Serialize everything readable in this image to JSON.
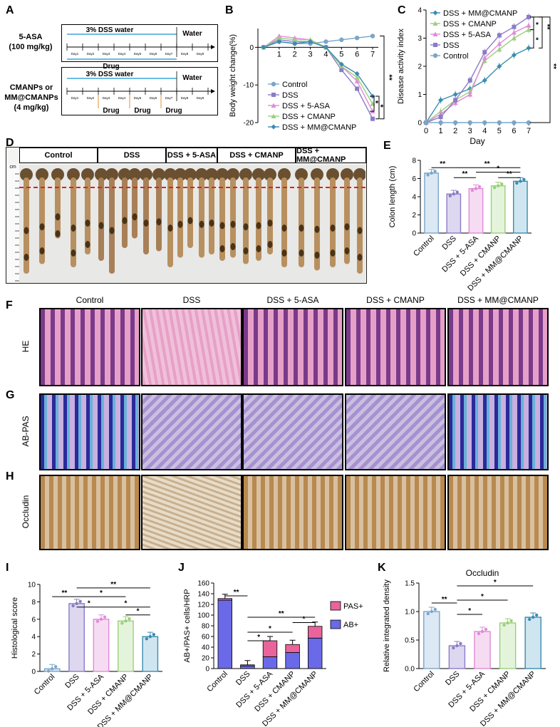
{
  "panels": {
    "A": "A",
    "B": "B",
    "C": "C",
    "D": "D",
    "E": "E",
    "F": "F",
    "G": "G",
    "H": "H",
    "I": "I",
    "J": "J",
    "K": "K"
  },
  "schedule": {
    "row1_drug": "5-ASA",
    "row1_dose": "(100 mg/kg)",
    "row2_drug_line1": "CMANPs or",
    "row2_drug_line2": "MM@CMANPs",
    "row2_dose": "(4 mg/kg)",
    "dss_label": "3% DSS water",
    "water_label": "Water",
    "drug_label": "Drug",
    "days": [
      "Day1",
      "Day2",
      "Day3",
      "Day4",
      "Day5",
      "Day6",
      "Day7",
      "Day8",
      "Day9"
    ]
  },
  "colon_photo": {
    "groups": [
      "Control",
      "DSS",
      "DSS + 5-ASA",
      "DSS + CMANP",
      "DSS + MM@CMANP"
    ],
    "ruler_label": "cm"
  },
  "histology": {
    "columns": [
      "Control",
      "DSS",
      "DSS + 5-ASA",
      "DSS + CMANP",
      "DSS + MM@CMANP"
    ],
    "rows": [
      "HE",
      "AB-PAS",
      "Occludin"
    ]
  },
  "colors": {
    "control": "#7aa6c8",
    "dss": "#8a7cc8",
    "asa": "#e08ad8",
    "cmanp": "#9ad07a",
    "mm": "#3a8cb0",
    "pas": "#e8649a",
    "ab": "#6a6ae8",
    "dashed_line": "#e02020"
  },
  "chart_data": [
    {
      "id": "B",
      "type": "line",
      "ylabel": "Body weight change(%)",
      "x": [
        0,
        1,
        2,
        3,
        4,
        5,
        6,
        7
      ],
      "ylim": [
        -20,
        5
      ],
      "yticks": [
        0,
        -10,
        -20
      ],
      "series": [
        {
          "name": "Control",
          "values": [
            0,
            1.5,
            1,
            1,
            1.5,
            2,
            2.5,
            3
          ]
        },
        {
          "name": "DSS",
          "values": [
            0,
            2,
            1.5,
            1.5,
            0,
            -6,
            -11,
            -19
          ]
        },
        {
          "name": "DSS + 5-ASA",
          "values": [
            0,
            3,
            2.5,
            2,
            0,
            -5,
            -9,
            -17
          ]
        },
        {
          "name": "DSS + CMANP",
          "values": [
            0,
            2.5,
            2,
            2,
            0,
            -5,
            -8,
            -15
          ]
        },
        {
          "name": "DSS + MM@CMANP",
          "values": [
            0,
            1.5,
            1,
            1.5,
            0,
            -4.5,
            -7,
            -13
          ]
        }
      ],
      "annotations": [
        "**",
        "*",
        "*"
      ]
    },
    {
      "id": "C",
      "type": "line",
      "ylabel": "Disease activity index",
      "xlabel": "Day",
      "x": [
        0,
        1,
        2,
        3,
        4,
        5,
        6,
        7
      ],
      "ylim": [
        0,
        4
      ],
      "yticks": [
        0,
        1,
        2,
        3,
        4
      ],
      "series": [
        {
          "name": "DSS + MM@CMANP",
          "values": [
            0,
            0.8,
            1,
            1.2,
            1.5,
            2,
            2.4,
            2.65
          ]
        },
        {
          "name": "DSS + CMANP",
          "values": [
            0,
            0.4,
            0.8,
            1.1,
            2.2,
            2.6,
            3,
            3.3
          ]
        },
        {
          "name": "DSS + 5-ASA",
          "values": [
            0,
            0.3,
            0.7,
            1,
            2.3,
            2.8,
            3.2,
            3.45
          ]
        },
        {
          "name": "DSS",
          "values": [
            0,
            0.2,
            0.8,
            1.5,
            2.5,
            3.1,
            3.4,
            3.75
          ]
        },
        {
          "name": "Control",
          "values": [
            0,
            0,
            0,
            0,
            0,
            0,
            0,
            0
          ]
        }
      ],
      "annotations": [
        "*",
        "*",
        "**",
        "**"
      ]
    },
    {
      "id": "E",
      "type": "bar",
      "ylabel": "Colon length (cm)",
      "categories": [
        "Control",
        "DSS",
        "DSS + 5-ASA",
        "DSS + CMANP",
        "DSS + MM@CMANP"
      ],
      "values": [
        6.6,
        4.3,
        4.9,
        5.2,
        5.7
      ],
      "ylim": [
        0,
        8
      ],
      "yticks": [
        0,
        2,
        4,
        6,
        8
      ],
      "annotations": [
        "**",
        "**",
        "**",
        "*",
        "**"
      ]
    },
    {
      "id": "I",
      "type": "bar",
      "ylabel": "Histological score",
      "categories": [
        "Control",
        "DSS",
        "DSS + 5-ASA",
        "DSS + CMANP",
        "DSS + MM@CMANP"
      ],
      "values": [
        0.3,
        7.8,
        6.0,
        5.8,
        4.0
      ],
      "ylim": [
        0,
        10
      ],
      "yticks": [
        0,
        2,
        4,
        6,
        8,
        10
      ],
      "annotations": [
        "**",
        "**",
        "*",
        "*",
        "*",
        "*"
      ]
    },
    {
      "id": "J",
      "type": "bar",
      "ylabel": "AB+/PAS+ cells/HRP",
      "categories": [
        "Control",
        "DSS",
        "DSS + 5-ASA",
        "DSS + CMANP",
        "DSS + MM@CMANP"
      ],
      "series": [
        {
          "name": "AB+",
          "values": [
            128,
            5,
            22,
            30,
            57
          ]
        },
        {
          "name": "PAS+",
          "values": [
            3,
            2,
            30,
            15,
            22
          ]
        }
      ],
      "ylim": [
        0,
        160
      ],
      "yticks": [
        0,
        20,
        40,
        60,
        80,
        100,
        120,
        140,
        160
      ],
      "annotations": [
        "**",
        "**",
        "*",
        "*",
        "*"
      ]
    },
    {
      "id": "K",
      "type": "bar",
      "title": "Occludin",
      "ylabel": "Relative integrated density",
      "categories": [
        "Control",
        "DSS",
        "DSS + 5-ASA",
        "DSS + CMANP",
        "DSS + MM@CMANP"
      ],
      "values": [
        1.0,
        0.4,
        0.65,
        0.8,
        0.9
      ],
      "ylim": [
        0,
        1.5
      ],
      "yticks": [
        0.0,
        0.5,
        1.0,
        1.5
      ],
      "annotations": [
        "**",
        "*",
        "*",
        "*",
        "*"
      ]
    }
  ]
}
